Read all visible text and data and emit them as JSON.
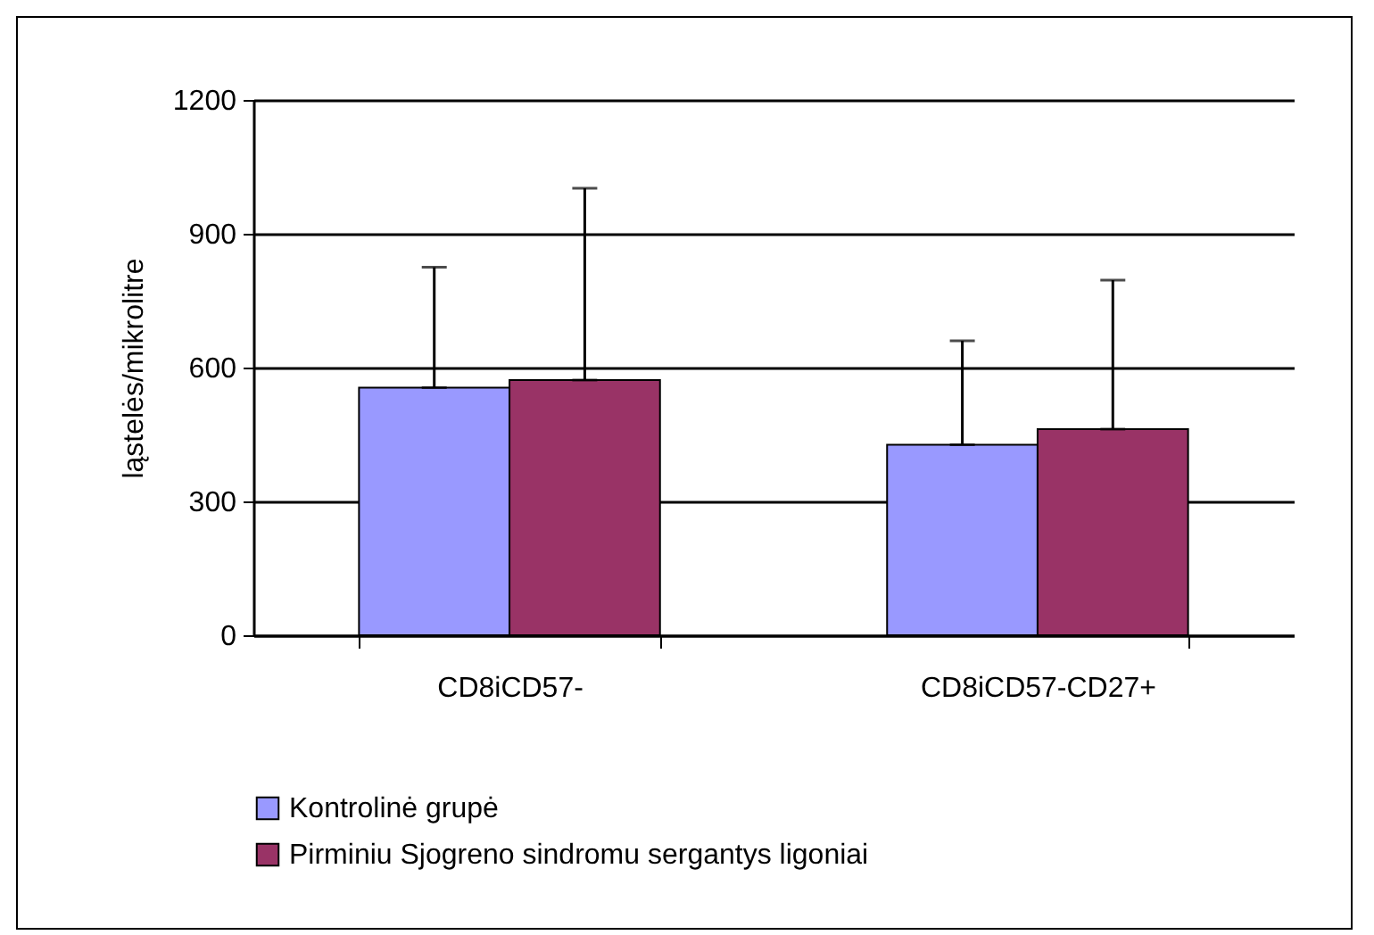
{
  "chart_data": {
    "type": "bar",
    "ylabel": "ląstelės/mikrolitre",
    "categories": [
      "CD8iCD57-",
      "CD8iCD57-CD27+"
    ],
    "series": [
      {
        "name": "Kontrolinė grupė",
        "color": "#9999ff",
        "values": [
          555,
          427
        ],
        "errors": [
          [
            555,
            825
          ],
          [
            427,
            660
          ]
        ]
      },
      {
        "name": "Pirminiu Sjogreno sindromu sergantys ligoniai",
        "color": "#993366",
        "values": [
          572,
          462
        ],
        "errors": [
          [
            572,
            1002
          ],
          [
            462,
            796
          ]
        ]
      }
    ],
    "ylim": [
      0,
      1200
    ],
    "yticks": [
      0,
      300,
      600,
      900,
      1200
    ],
    "grid": "y",
    "legend": "bottom"
  }
}
